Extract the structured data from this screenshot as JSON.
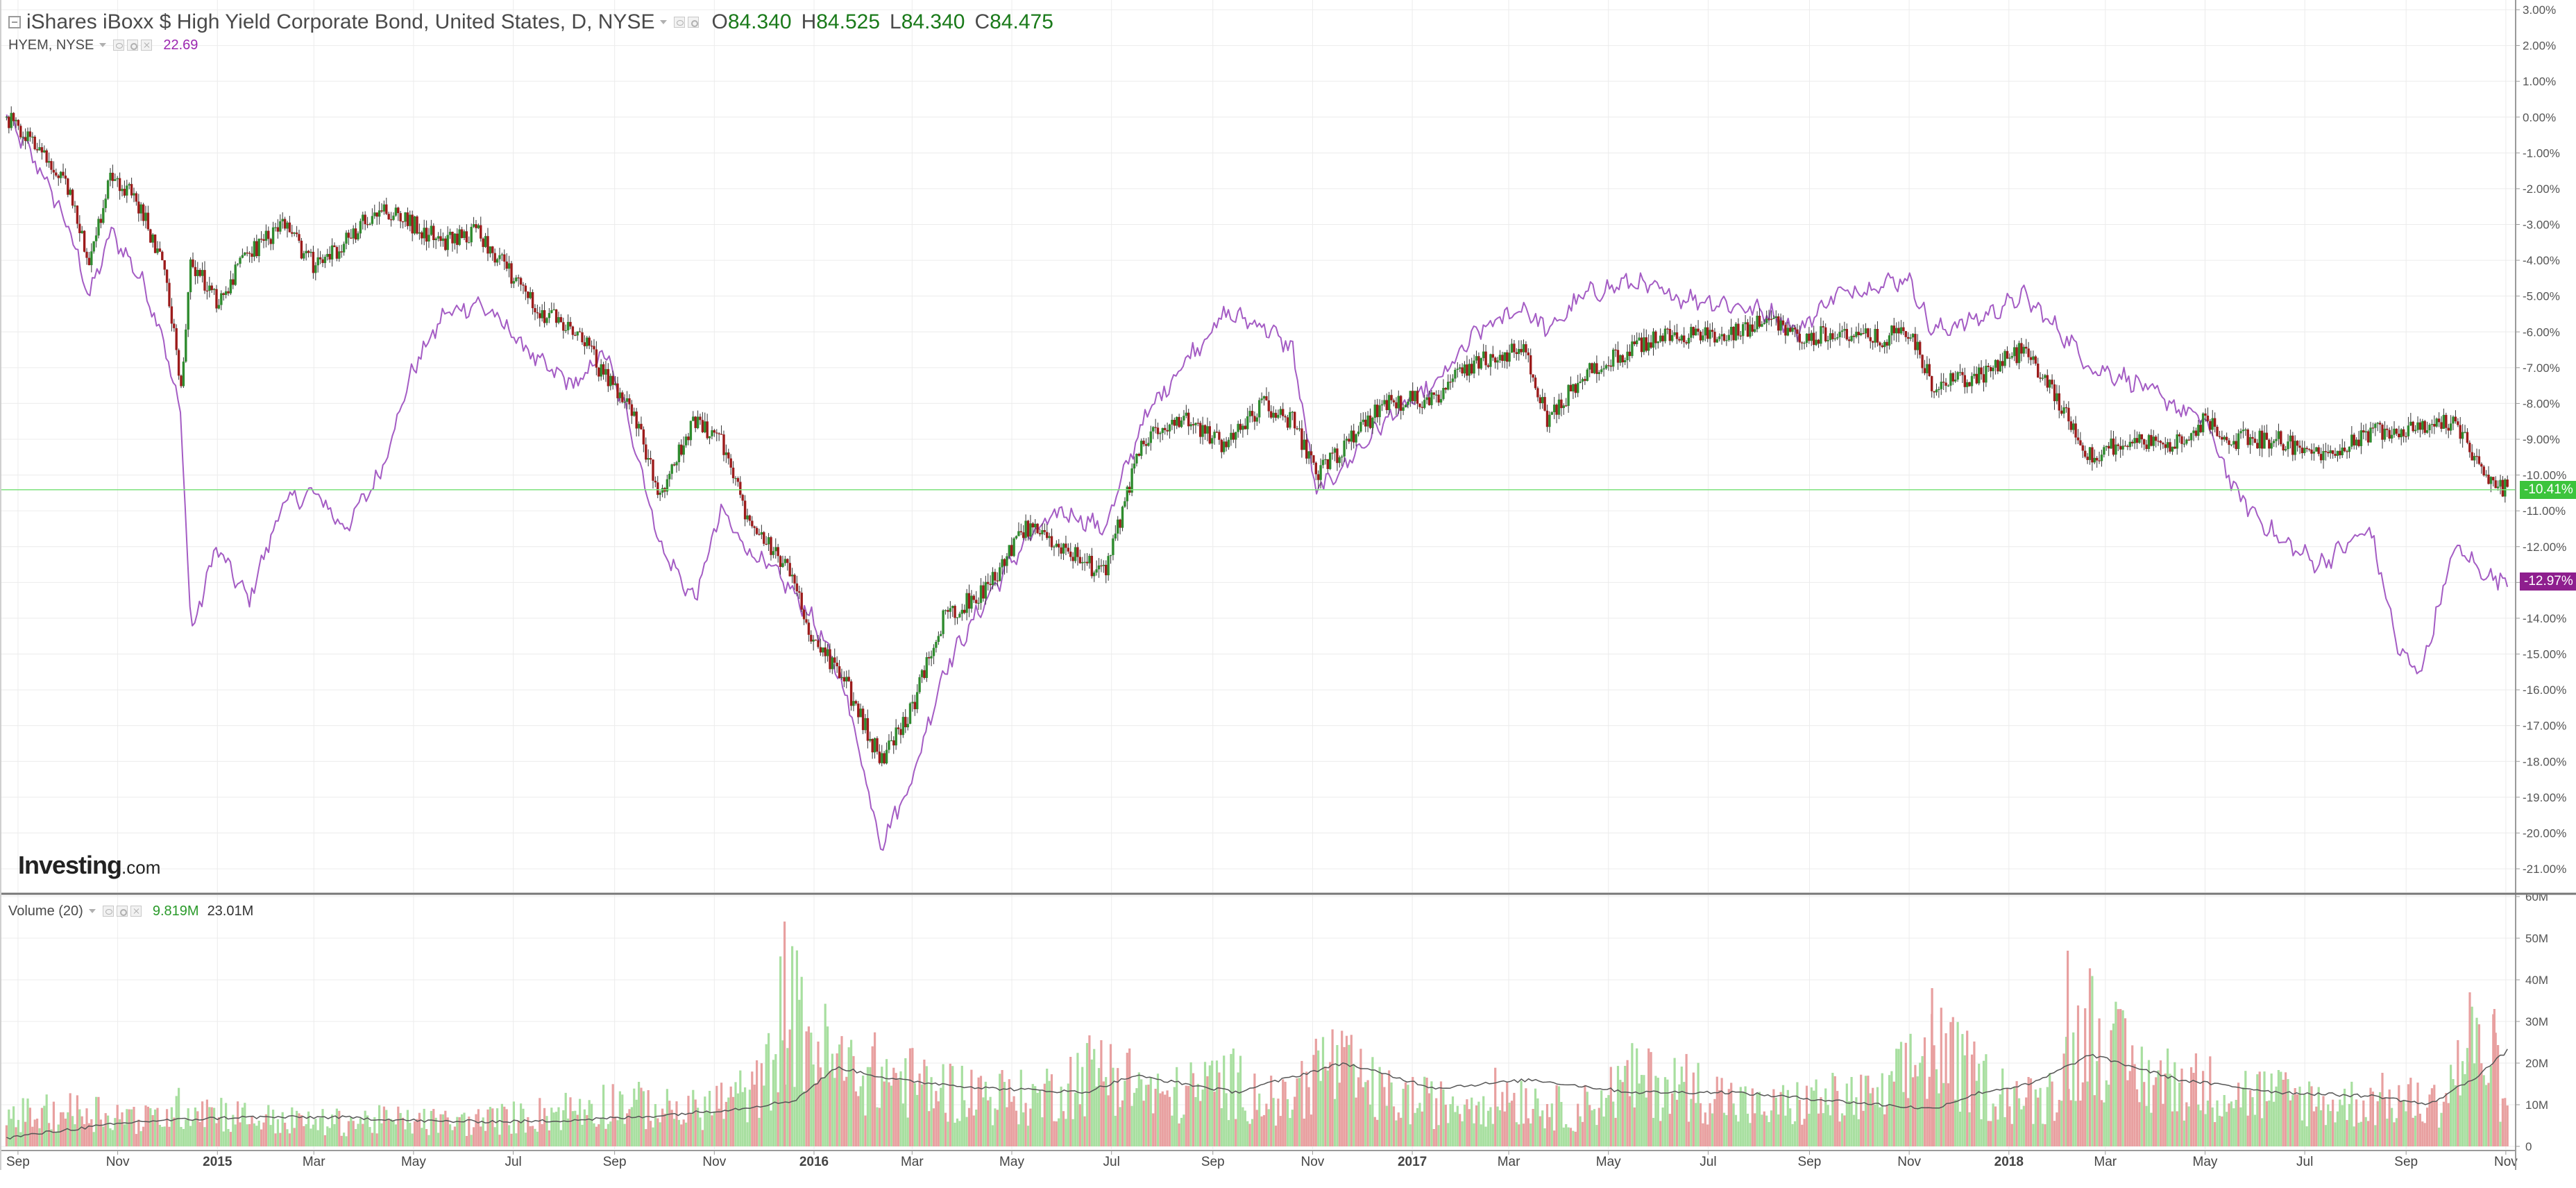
{
  "header": {
    "title": "iShares iBoxx $ High Yield Corporate Bond, United States, D, NYSE",
    "ohlc": [
      {
        "key": "O",
        "value": "84.340"
      },
      {
        "key": "H",
        "value": "84.525"
      },
      {
        "key": "L",
        "value": "84.340"
      },
      {
        "key": "C",
        "value": "84.475"
      }
    ]
  },
  "overlay": {
    "name": "HYEM, NYSE",
    "value": "22.69",
    "color": "#9c27b0"
  },
  "volume_legend": {
    "name": "Volume (20)",
    "value1": "9.819M",
    "value2": "23.01M"
  },
  "logo": {
    "main": "Investing",
    "suffix": ".com"
  },
  "price_tags": {
    "hyg": "-10.41%",
    "hyem": "-12.97%"
  },
  "colors": {
    "up": "#2e8b2e",
    "down": "#9c1b1b",
    "hyem_line": "#a45cc4",
    "vol_up": "#a8dfa0",
    "vol_down": "#e8a0a0",
    "hyg_tag": "#3cc43c",
    "hyem_tag": "#8e1e8e",
    "grid": "#ececec"
  },
  "chart_data": [
    {
      "type": "line",
      "title": "iShares iBoxx $ High Yield Corporate Bond, United States, D, NYSE",
      "y_unit": "%",
      "ylim": [
        -21.5,
        3.0
      ],
      "y_ticks": [
        "3.00%",
        "2.00%",
        "1.00%",
        "0.00%",
        "-1.00%",
        "-2.00%",
        "-3.00%",
        "-4.00%",
        "-5.00%",
        "-6.00%",
        "-7.00%",
        "-8.00%",
        "-9.00%",
        "-10.00%",
        "-11.00%",
        "-12.00%",
        "-13.00%",
        "-14.00%",
        "-15.00%",
        "-16.00%",
        "-17.00%",
        "-18.00%",
        "-19.00%",
        "-20.00%",
        "-21.00%"
      ],
      "y_tick_values": [
        3,
        2,
        1,
        0,
        -1,
        -2,
        -3,
        -4,
        -5,
        -6,
        -7,
        -8,
        -9,
        -10,
        -11,
        -12,
        -13,
        -14,
        -15,
        -16,
        -17,
        -18,
        -19,
        -20,
        -21
      ],
      "x_ticks": [
        "Sep",
        "Nov",
        "2015",
        "Mar",
        "May",
        "Jul",
        "Sep",
        "Nov",
        "2016",
        "Mar",
        "May",
        "Jul",
        "Sep",
        "Nov",
        "2017",
        "Mar",
        "May",
        "Jul",
        "Sep",
        "Nov",
        "2018",
        "Mar",
        "May",
        "Jul",
        "Sep",
        "Nov"
      ],
      "x_tick_dates": [
        "2014-09-01",
        "2014-11-01",
        "2015-01-01",
        "2015-03-01",
        "2015-05-01",
        "2015-07-01",
        "2015-09-01",
        "2015-11-01",
        "2016-01-01",
        "2016-03-01",
        "2016-05-01",
        "2016-07-01",
        "2016-09-01",
        "2016-11-01",
        "2017-01-01",
        "2017-03-01",
        "2017-05-01",
        "2017-07-01",
        "2017-09-01",
        "2017-11-01",
        "2018-01-01",
        "2018-03-01",
        "2018-05-01",
        "2018-07-01",
        "2018-09-01",
        "2018-11-01"
      ],
      "grid": true,
      "series": [
        {
          "name": "iShares iBoxx $ High Yield Corporate Bond, United States, D, NYSE",
          "style": "candlestick",
          "x": [
            "2014-08-25",
            "2014-09-15",
            "2014-10-01",
            "2014-10-15",
            "2014-10-28",
            "2014-11-15",
            "2014-12-01",
            "2014-12-10",
            "2014-12-16",
            "2015-01-01",
            "2015-01-20",
            "2015-02-10",
            "2015-03-02",
            "2015-03-20",
            "2015-04-10",
            "2015-05-01",
            "2015-05-20",
            "2015-06-10",
            "2015-07-01",
            "2015-07-20",
            "2015-08-10",
            "2015-08-25",
            "2015-09-10",
            "2015-09-29",
            "2015-10-20",
            "2015-11-05",
            "2015-11-20",
            "2015-12-14",
            "2015-12-31",
            "2016-01-20",
            "2016-02-11",
            "2016-03-01",
            "2016-03-20",
            "2016-04-15",
            "2016-05-10",
            "2016-06-01",
            "2016-06-27",
            "2016-07-20",
            "2016-08-15",
            "2016-09-09",
            "2016-10-01",
            "2016-10-20",
            "2016-11-03",
            "2016-11-15",
            "2016-12-15",
            "2017-01-15",
            "2017-02-10",
            "2017-03-10",
            "2017-03-25",
            "2017-04-15",
            "2017-05-15",
            "2017-06-10",
            "2017-07-10",
            "2017-08-10",
            "2017-08-25",
            "2017-09-15",
            "2017-10-10",
            "2017-11-01",
            "2017-11-15",
            "2017-12-15",
            "2018-01-10",
            "2018-02-08",
            "2018-02-20",
            "2018-03-15",
            "2018-04-10",
            "2018-05-01",
            "2018-05-20",
            "2018-06-15",
            "2018-07-10",
            "2018-08-10",
            "2018-09-10",
            "2018-10-01",
            "2018-10-20",
            "2018-11-02"
          ],
          "y": [
            0.0,
            -1.0,
            -2.0,
            -4.0,
            -1.5,
            -2.5,
            -4.5,
            -7.5,
            -4.0,
            -5.2,
            -3.8,
            -3.0,
            -4.2,
            -3.5,
            -2.5,
            -3.0,
            -3.5,
            -3.2,
            -4.5,
            -5.5,
            -6.0,
            -7.2,
            -8.0,
            -10.5,
            -8.5,
            -9.0,
            -11.0,
            -12.5,
            -14.5,
            -15.8,
            -18.0,
            -16.5,
            -14.0,
            -13.2,
            -11.5,
            -12.0,
            -12.8,
            -9.0,
            -8.5,
            -9.2,
            -8.0,
            -8.5,
            -10.0,
            -9.5,
            -8.0,
            -7.8,
            -6.8,
            -6.5,
            -8.5,
            -7.2,
            -6.5,
            -6.0,
            -6.2,
            -5.6,
            -6.2,
            -6.0,
            -6.2,
            -6.0,
            -7.5,
            -7.2,
            -6.5,
            -8.5,
            -9.5,
            -9.0,
            -9.2,
            -8.5,
            -9.0,
            -9.0,
            -9.5,
            -8.8,
            -8.6,
            -8.5,
            -10.2,
            -10.41
          ]
        },
        {
          "name": "HYEM, NYSE",
          "style": "line",
          "x": [
            "2014-08-25",
            "2014-09-15",
            "2014-10-01",
            "2014-10-15",
            "2014-10-28",
            "2014-11-15",
            "2014-11-28",
            "2014-12-10",
            "2014-12-16",
            "2014-12-31",
            "2015-01-20",
            "2015-02-10",
            "2015-03-02",
            "2015-03-20",
            "2015-04-10",
            "2015-05-01",
            "2015-05-20",
            "2015-06-10",
            "2015-06-25",
            "2015-07-20",
            "2015-08-10",
            "2015-08-25",
            "2015-09-10",
            "2015-09-29",
            "2015-10-20",
            "2015-11-05",
            "2015-11-20",
            "2015-12-14",
            "2015-12-31",
            "2016-01-20",
            "2016-02-11",
            "2016-03-01",
            "2016-03-20",
            "2016-04-15",
            "2016-05-10",
            "2016-06-01",
            "2016-06-27",
            "2016-07-20",
            "2016-08-15",
            "2016-09-09",
            "2016-10-01",
            "2016-10-20",
            "2016-11-03",
            "2016-11-15",
            "2016-12-15",
            "2017-01-15",
            "2017-02-10",
            "2017-03-10",
            "2017-03-25",
            "2017-04-15",
            "2017-05-15",
            "2017-06-10",
            "2017-07-10",
            "2017-08-10",
            "2017-08-25",
            "2017-09-15",
            "2017-10-10",
            "2017-11-01",
            "2017-11-15",
            "2017-12-15",
            "2018-01-10",
            "2018-02-08",
            "2018-02-20",
            "2018-03-15",
            "2018-04-10",
            "2018-05-01",
            "2018-05-20",
            "2018-06-15",
            "2018-07-10",
            "2018-08-10",
            "2018-08-28",
            "2018-09-10",
            "2018-10-01",
            "2018-10-20",
            "2018-11-02"
          ],
          "y": [
            0.0,
            -1.5,
            -3.0,
            -5.0,
            -3.2,
            -4.5,
            -6.0,
            -8.5,
            -14.5,
            -12.0,
            -13.5,
            -10.8,
            -10.5,
            -11.5,
            -10.0,
            -7.0,
            -5.5,
            -5.2,
            -5.8,
            -7.0,
            -7.5,
            -6.5,
            -8.5,
            -12.0,
            -13.5,
            -11.0,
            -12.0,
            -13.0,
            -14.0,
            -16.0,
            -20.3,
            -18.5,
            -15.5,
            -13.5,
            -11.8,
            -11.0,
            -11.5,
            -8.5,
            -6.8,
            -5.5,
            -5.8,
            -6.5,
            -10.5,
            -10.0,
            -8.5,
            -7.5,
            -6.0,
            -5.3,
            -6.0,
            -5.0,
            -4.6,
            -5.0,
            -5.2,
            -5.5,
            -6.0,
            -5.0,
            -4.7,
            -4.5,
            -6.0,
            -5.6,
            -5.0,
            -6.3,
            -7.0,
            -7.3,
            -8.0,
            -8.5,
            -10.5,
            -11.8,
            -12.5,
            -11.5,
            -15.0,
            -15.5,
            -12.0,
            -12.8,
            -12.97
          ]
        }
      ]
    },
    {
      "type": "bar",
      "title": "Volume (20)",
      "ylim": [
        0,
        60
      ],
      "y_unit": "M",
      "y_ticks": [
        "60M",
        "50M",
        "40M",
        "30M",
        "20M",
        "10M",
        "0"
      ],
      "y_tick_values": [
        60,
        50,
        40,
        30,
        20,
        10,
        0
      ],
      "x_ticks": [
        "Sep",
        "Nov",
        "2015",
        "Mar",
        "May",
        "Jul",
        "Sep",
        "Nov",
        "2016",
        "Mar",
        "May",
        "Jul",
        "Sep",
        "Nov",
        "2017",
        "Mar",
        "May",
        "Jul",
        "Sep",
        "Nov",
        "2018",
        "Mar",
        "May",
        "Jul",
        "Sep",
        "Nov"
      ],
      "x_tick_dates": [
        "2014-09-01",
        "2014-11-01",
        "2015-01-01",
        "2015-03-01",
        "2015-05-01",
        "2015-07-01",
        "2015-09-01",
        "2015-11-01",
        "2016-01-01",
        "2016-03-01",
        "2016-05-01",
        "2016-07-01",
        "2016-09-01",
        "2016-11-01",
        "2017-01-01",
        "2017-03-01",
        "2017-05-01",
        "2017-07-01",
        "2017-09-01",
        "2017-11-01",
        "2018-01-01",
        "2018-03-01",
        "2018-05-01",
        "2018-07-01",
        "2018-09-01",
        "2018-11-01"
      ],
      "series": [
        {
          "name": "Volume",
          "x": [
            "2014-09-10",
            "2014-10-15",
            "2014-11-20",
            "2014-12-15",
            "2015-01-20",
            "2015-03-01",
            "2015-04-15",
            "2015-06-01",
            "2015-07-15",
            "2015-09-01",
            "2015-10-15",
            "2015-12-01",
            "2015-12-14",
            "2016-01-15",
            "2016-02-15",
            "2016-03-15",
            "2016-04-15",
            "2016-05-15",
            "2016-06-27",
            "2016-08-01",
            "2016-09-09",
            "2016-10-15",
            "2016-11-09",
            "2016-12-15",
            "2017-01-20",
            "2017-03-01",
            "2017-04-10",
            "2017-05-15",
            "2017-06-20",
            "2017-08-01",
            "2017-09-10",
            "2017-10-15",
            "2017-11-15",
            "2017-12-15",
            "2018-01-20",
            "2018-02-05",
            "2018-02-20",
            "2018-03-20",
            "2018-04-20",
            "2018-05-20",
            "2018-06-20",
            "2018-07-20",
            "2018-08-20",
            "2018-09-20",
            "2018-10-10",
            "2018-10-25",
            "2018-11-02"
          ],
          "values": [
            12,
            14,
            10,
            16,
            11,
            9,
            10,
            9,
            12,
            17,
            13,
            22,
            54,
            30,
            27,
            22,
            20,
            18,
            31,
            18,
            25,
            16,
            33,
            19,
            16,
            20,
            13,
            25,
            23,
            14,
            18,
            18,
            38,
            24,
            16,
            30,
            47,
            27,
            24,
            21,
            19,
            16,
            18,
            16,
            37,
            32,
            9.819
          ]
        },
        {
          "name": "Volume (20)",
          "style": "line",
          "x": [
            "2014-08-25",
            "2014-10-01",
            "2014-11-15",
            "2015-01-15",
            "2015-03-15",
            "2015-05-15",
            "2015-07-15",
            "2015-09-15",
            "2015-11-15",
            "2015-12-20",
            "2016-01-15",
            "2016-02-20",
            "2016-04-15",
            "2016-06-15",
            "2016-07-15",
            "2016-09-15",
            "2016-11-20",
            "2017-01-15",
            "2017-03-15",
            "2017-05-15",
            "2017-07-15",
            "2017-09-15",
            "2017-11-15",
            "2017-12-15",
            "2018-01-15",
            "2018-02-20",
            "2018-04-15",
            "2018-06-15",
            "2018-08-15",
            "2018-09-15",
            "2018-10-15",
            "2018-11-02"
          ],
          "values": [
            2,
            4,
            6,
            7,
            7,
            6,
            6,
            7,
            9,
            11,
            19,
            16,
            14,
            13,
            17,
            13,
            20,
            14,
            16,
            13,
            13,
            11,
            9,
            13,
            15,
            22,
            16,
            13,
            12,
            10,
            17,
            23.01
          ]
        }
      ]
    }
  ]
}
